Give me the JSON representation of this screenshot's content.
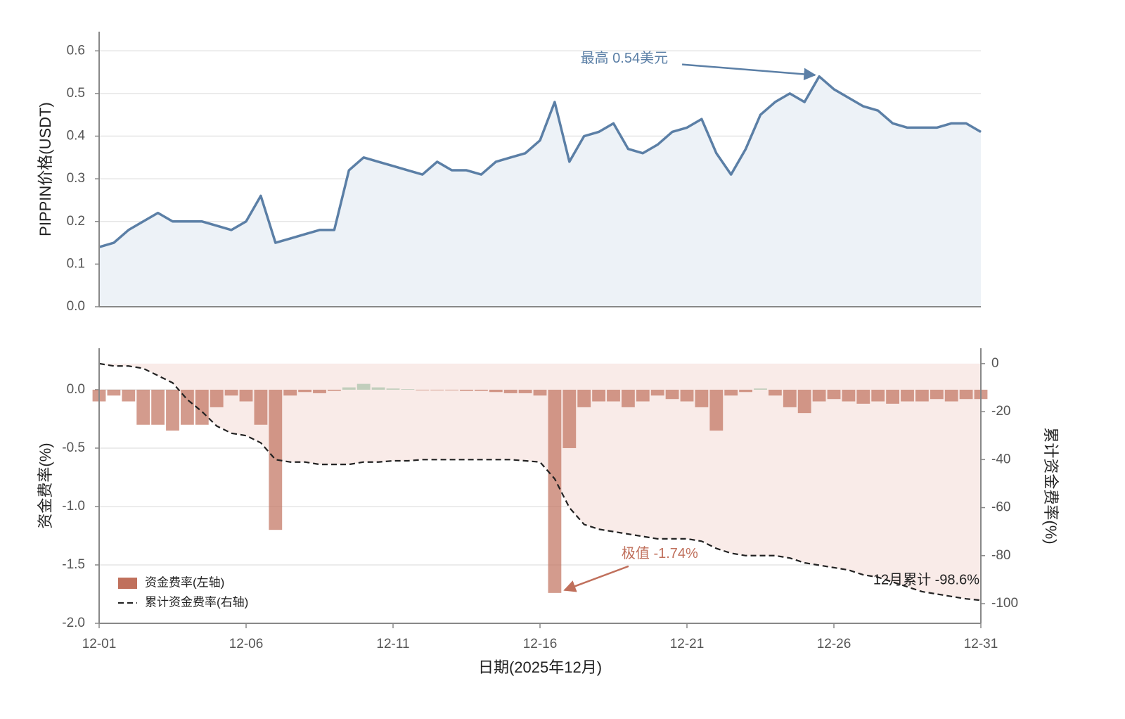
{
  "chart_data": [
    {
      "type": "line",
      "ylabel": "PIPPIN价格(USDT)",
      "x": [
        1,
        1.5,
        2,
        2.5,
        3,
        3.5,
        4,
        4.5,
        5,
        5.5,
        6,
        6.5,
        7,
        7.5,
        8,
        8.5,
        9,
        9.5,
        10,
        10.5,
        11,
        11.5,
        12,
        12.5,
        13,
        13.5,
        14,
        14.5,
        15,
        15.5,
        16,
        16.5,
        17,
        17.5,
        18,
        18.5,
        19,
        19.5,
        20,
        20.5,
        21,
        21.5,
        22,
        22.5,
        23,
        23.5,
        24,
        24.5,
        25,
        25.5,
        26,
        26.5,
        27,
        27.5,
        28,
        28.5,
        29,
        29.5,
        30,
        30.5,
        31
      ],
      "xlim": [
        1,
        31
      ],
      "ylim": [
        0,
        0.645
      ],
      "yticks": [
        {
          "value": 0,
          "label": "0.0"
        },
        0.1,
        0.2,
        0.3,
        0.4,
        0.5,
        0.6
      ],
      "grid": true,
      "series": [
        {
          "color": "#5b7fa6",
          "fill_color": "#edf2f7",
          "values": [
            0.14,
            0.15,
            0.18,
            0.2,
            0.22,
            0.2,
            0.2,
            0.2,
            0.19,
            0.18,
            0.2,
            0.26,
            0.15,
            0.16,
            0.17,
            0.18,
            0.18,
            0.32,
            0.35,
            0.34,
            0.33,
            0.32,
            0.31,
            0.34,
            0.32,
            0.32,
            0.31,
            0.34,
            0.35,
            0.36,
            0.39,
            0.48,
            0.34,
            0.4,
            0.41,
            0.43,
            0.37,
            0.36,
            0.38,
            0.41,
            0.42,
            0.44,
            0.36,
            0.31,
            0.37,
            0.45,
            0.48,
            0.5,
            0.48,
            0.54,
            0.51,
            0.49,
            0.47,
            0.46,
            0.43,
            0.42,
            0.42,
            0.42,
            0.43,
            0.43,
            0.41
          ]
        }
      ],
      "annotations": [
        {
          "text": "最高 0.54美元"
        }
      ]
    },
    {
      "type": "bar",
      "ylabel": "资金费率(%)",
      "y2label": "累计资金费率(%)",
      "xlabel": "日期(2025年12月)",
      "x": [
        1,
        1.5,
        2,
        2.5,
        3,
        3.5,
        4,
        4.5,
        5,
        5.5,
        6,
        6.5,
        7,
        7.5,
        8,
        8.5,
        9,
        9.5,
        10,
        10.5,
        11,
        11.5,
        12,
        12.5,
        13,
        13.5,
        14,
        14.5,
        15,
        15.5,
        16,
        16.5,
        17,
        17.5,
        18,
        18.5,
        19,
        19.5,
        20,
        20.5,
        21,
        21.5,
        22,
        22.5,
        23,
        23.5,
        24,
        24.5,
        25,
        25.5,
        26,
        26.5,
        27,
        27.5,
        28,
        28.5,
        29,
        29.5,
        30,
        30.5,
        31
      ],
      "xlim": [
        1,
        31
      ],
      "xticks": [
        {
          "value": 1,
          "label": "12-01"
        },
        {
          "value": 6,
          "label": "12-06"
        },
        {
          "value": 11,
          "label": "12-11"
        },
        {
          "value": 16,
          "label": "12-16"
        },
        {
          "value": 21,
          "label": "12-21"
        },
        {
          "value": 26,
          "label": "12-26"
        },
        {
          "value": 31,
          "label": "12-31"
        }
      ],
      "ylim": [
        -2.0,
        0.355
      ],
      "yticks": [
        {
          "value": 0,
          "label": "0.0"
        },
        -0.5,
        {
          "value": -1,
          "label": "-1.0"
        },
        -1.5,
        {
          "value": -2,
          "label": "-2.0"
        }
      ],
      "y2lim": [
        -108.2,
        6.4
      ],
      "y2ticks": [
        0,
        -20,
        -40,
        -60,
        -80,
        -100
      ],
      "grid": true,
      "legend": "lower left",
      "series": [
        {
          "name": "资金费率(左轴)",
          "type": "bar",
          "color": "#c0705c",
          "positive_color": "#a9c2aa",
          "values": [
            -0.1,
            -0.05,
            -0.1,
            -0.3,
            -0.3,
            -0.35,
            -0.3,
            -0.3,
            -0.15,
            -0.05,
            -0.1,
            -0.3,
            -1.2,
            -0.05,
            -0.02,
            -0.03,
            -0.01,
            0.02,
            0.05,
            0.02,
            0.01,
            0.005,
            -0.005,
            -0.005,
            -0.005,
            -0.01,
            -0.01,
            -0.02,
            -0.03,
            -0.03,
            -0.05,
            -1.74,
            -0.5,
            -0.15,
            -0.1,
            -0.1,
            -0.15,
            -0.1,
            -0.05,
            -0.08,
            -0.1,
            -0.15,
            -0.35,
            -0.05,
            -0.02,
            0.01,
            -0.05,
            -0.15,
            -0.2,
            -0.1,
            -0.08,
            -0.1,
            -0.12,
            -0.1,
            -0.12,
            -0.1,
            -0.1,
            -0.08,
            -0.1,
            -0.08,
            -0.08
          ]
        },
        {
          "name": "累计资金费率(右轴)",
          "type": "line",
          "axis": "y2",
          "color": "#222222",
          "fill_color": "#f9ebe8",
          "values": [
            0,
            -1,
            -1,
            -2,
            -5,
            -8,
            -15,
            -20,
            -26,
            -29,
            -30,
            -33,
            -40,
            -41,
            -41,
            -42,
            -42,
            -42,
            -41,
            -41,
            -40.5,
            -40.5,
            -40,
            -40,
            -40,
            -40,
            -40,
            -40,
            -40,
            -40.5,
            -41,
            -48,
            -60,
            -67,
            -69,
            -70,
            -71,
            -72,
            -73,
            -73,
            -73,
            -74,
            -77,
            -79,
            -80,
            -80,
            -80,
            -81,
            -83,
            -84,
            -85,
            -86,
            -88,
            -89,
            -91,
            -93,
            -95,
            -96,
            -97,
            -98,
            -98.6
          ]
        }
      ],
      "annotations": [
        {
          "text": "极值 -1.74%"
        },
        {
          "text": "12月累计 -98.6%"
        }
      ]
    }
  ]
}
